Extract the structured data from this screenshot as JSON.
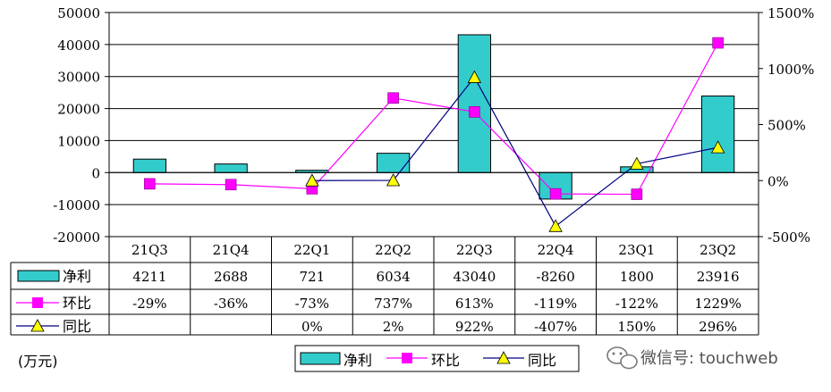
{
  "chart_data": {
    "type": "bar",
    "categories": [
      "21Q3",
      "21Q4",
      "22Q1",
      "22Q2",
      "22Q3",
      "22Q4",
      "23Q1",
      "23Q2"
    ],
    "series": [
      {
        "name": "净利",
        "type": "bar",
        "axis": "left",
        "color": "#33CCCC",
        "values": [
          4211,
          2688,
          721,
          6034,
          43040,
          -8260,
          1800,
          23916
        ],
        "labels": [
          "4211",
          "2688",
          "721",
          "6034",
          "43040",
          "-8260",
          "1800",
          "23916"
        ]
      },
      {
        "name": "环比",
        "type": "line",
        "axis": "right",
        "color": "#FF00FF",
        "values": [
          -29,
          -36,
          -73,
          737,
          613,
          -119,
          -122,
          1229
        ],
        "labels": [
          "-29%",
          "-36%",
          "-73%",
          "737%",
          "613%",
          "-119%",
          "-122%",
          "1229%"
        ]
      },
      {
        "name": "同比",
        "type": "line",
        "axis": "right",
        "color": "#000080",
        "marker_color": "#FFFF00",
        "values": [
          null,
          null,
          0,
          2,
          922,
          -407,
          150,
          296
        ],
        "labels": [
          "",
          "",
          "0%",
          "2%",
          "922%",
          "-407%",
          "150%",
          "296%"
        ]
      }
    ],
    "y_left": {
      "ylim": [
        -20000,
        50000
      ],
      "ticks": [
        "-20000",
        "-10000",
        "0",
        "10000",
        "20000",
        "30000",
        "40000",
        "50000"
      ]
    },
    "y_right": {
      "ylim": [
        -500,
        1500
      ],
      "ticks": [
        "-500%",
        "0%",
        "500%",
        "1000%",
        "1500%"
      ]
    },
    "unit_note": "(万元)",
    "legend_placement": "bottom",
    "grid": "horizontal",
    "watermark": "微信号: touchweb"
  }
}
